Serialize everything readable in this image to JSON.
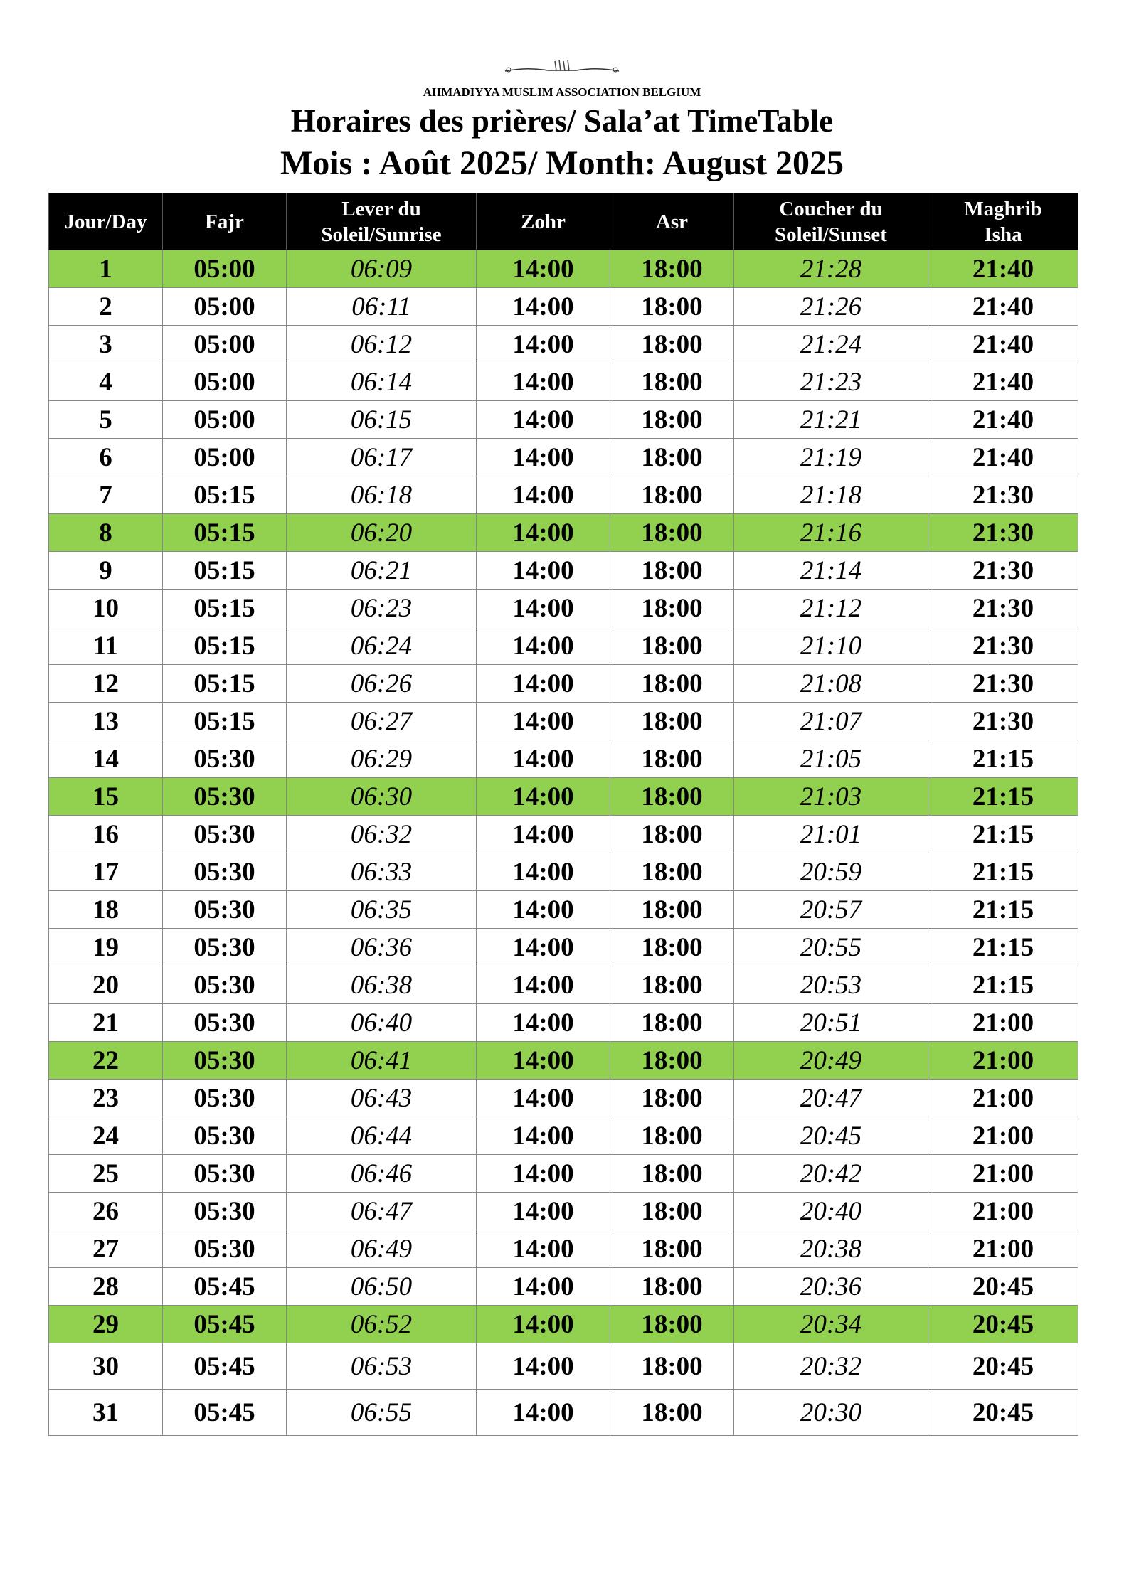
{
  "header": {
    "logo": "bismillah-calligraphy",
    "organization": "AHMADIYYA MUSLIM ASSOCIATION BELGIUM",
    "title": "Horaires des prières/ Sala’at TimeTable",
    "subtitle": "Mois : Août 2025/ Month: August 2025"
  },
  "highlight_color": "#92d050",
  "table": {
    "columns": [
      "Jour/Day",
      "Fajr",
      "Lever du Soleil/Sunrise",
      "Zohr",
      "Asr",
      "Coucher du Soleil/Sunset",
      "Maghrib Isha"
    ],
    "highlighted_days": [
      1,
      8,
      15,
      22,
      29
    ],
    "rows": [
      [
        "1",
        "05:00",
        "06:09",
        "14:00",
        "18:00",
        "21:28",
        "21:40"
      ],
      [
        "2",
        "05:00",
        "06:11",
        "14:00",
        "18:00",
        "21:26",
        "21:40"
      ],
      [
        "3",
        "05:00",
        "06:12",
        "14:00",
        "18:00",
        "21:24",
        "21:40"
      ],
      [
        "4",
        "05:00",
        "06:14",
        "14:00",
        "18:00",
        "21:23",
        "21:40"
      ],
      [
        "5",
        "05:00",
        "06:15",
        "14:00",
        "18:00",
        "21:21",
        "21:40"
      ],
      [
        "6",
        "05:00",
        "06:17",
        "14:00",
        "18:00",
        "21:19",
        "21:40"
      ],
      [
        "7",
        "05:15",
        "06:18",
        "14:00",
        "18:00",
        "21:18",
        "21:30"
      ],
      [
        "8",
        "05:15",
        "06:20",
        "14:00",
        "18:00",
        "21:16",
        "21:30"
      ],
      [
        "9",
        "05:15",
        "06:21",
        "14:00",
        "18:00",
        "21:14",
        "21:30"
      ],
      [
        "10",
        "05:15",
        "06:23",
        "14:00",
        "18:00",
        "21:12",
        "21:30"
      ],
      [
        "11",
        "05:15",
        "06:24",
        "14:00",
        "18:00",
        "21:10",
        "21:30"
      ],
      [
        "12",
        "05:15",
        "06:26",
        "14:00",
        "18:00",
        "21:08",
        "21:30"
      ],
      [
        "13",
        "05:15",
        "06:27",
        "14:00",
        "18:00",
        "21:07",
        "21:30"
      ],
      [
        "14",
        "05:30",
        "06:29",
        "14:00",
        "18:00",
        "21:05",
        "21:15"
      ],
      [
        "15",
        "05:30",
        "06:30",
        "14:00",
        "18:00",
        "21:03",
        "21:15"
      ],
      [
        "16",
        "05:30",
        "06:32",
        "14:00",
        "18:00",
        "21:01",
        "21:15"
      ],
      [
        "17",
        "05:30",
        "06:33",
        "14:00",
        "18:00",
        "20:59",
        "21:15"
      ],
      [
        "18",
        "05:30",
        "06:35",
        "14:00",
        "18:00",
        "20:57",
        "21:15"
      ],
      [
        "19",
        "05:30",
        "06:36",
        "14:00",
        "18:00",
        "20:55",
        "21:15"
      ],
      [
        "20",
        "05:30",
        "06:38",
        "14:00",
        "18:00",
        "20:53",
        "21:15"
      ],
      [
        "21",
        "05:30",
        "06:40",
        "14:00",
        "18:00",
        "20:51",
        "21:00"
      ],
      [
        "22",
        "05:30",
        "06:41",
        "14:00",
        "18:00",
        "20:49",
        "21:00"
      ],
      [
        "23",
        "05:30",
        "06:43",
        "14:00",
        "18:00",
        "20:47",
        "21:00"
      ],
      [
        "24",
        "05:30",
        "06:44",
        "14:00",
        "18:00",
        "20:45",
        "21:00"
      ],
      [
        "25",
        "05:30",
        "06:46",
        "14:00",
        "18:00",
        "20:42",
        "21:00"
      ],
      [
        "26",
        "05:30",
        "06:47",
        "14:00",
        "18:00",
        "20:40",
        "21:00"
      ],
      [
        "27",
        "05:30",
        "06:49",
        "14:00",
        "18:00",
        "20:38",
        "21:00"
      ],
      [
        "28",
        "05:45",
        "06:50",
        "14:00",
        "18:00",
        "20:36",
        "20:45"
      ],
      [
        "29",
        "05:45",
        "06:52",
        "14:00",
        "18:00",
        "20:34",
        "20:45"
      ],
      [
        "30",
        "05:45",
        "06:53",
        "14:00",
        "18:00",
        "20:32",
        "20:45"
      ],
      [
        "31",
        "05:45",
        "06:55",
        "14:00",
        "18:00",
        "20:30",
        "20:45"
      ]
    ]
  }
}
